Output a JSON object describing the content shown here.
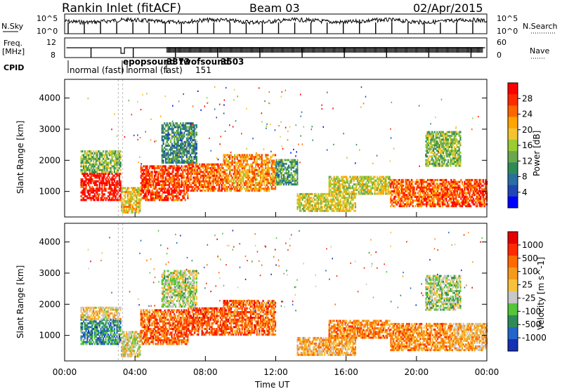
{
  "header": {
    "station": "Rankin Inlet (fitACF)",
    "beam": "Beam 03",
    "date": "02/Apr/2015"
  },
  "aux": {
    "nsky_label": "N.Sky",
    "nsky_ticks": [
      "10^5",
      "10^0"
    ],
    "nsearch_label": "N.Search",
    "nsearch_ticks": [
      "10^5",
      "10^0"
    ],
    "freq_label_1": "Freq.",
    "freq_label_2": "[MHz]",
    "freq_ticks": [
      "12",
      "8"
    ],
    "nave_label": "Nave",
    "nave_ticks": [
      "60",
      "0"
    ],
    "cpid_label": "CPID",
    "cpid_segments": [
      "normal (fast)",
      "epopsound",
      "normal (fast)",
      "3373",
      "twofsound",
      "3503",
      "151"
    ]
  },
  "chart_data": [
    {
      "type": "heatmap",
      "name": "Power panel",
      "ylabel": "Slant Range [km]",
      "yticks": [
        1000,
        2000,
        3000,
        4000
      ],
      "ylim": [
        180,
        4600
      ],
      "xlim": [
        0,
        24
      ],
      "colorbar": {
        "label": "Power [dB]",
        "ticks": [
          "28",
          "24",
          "20",
          "16",
          "12",
          "8",
          "4"
        ],
        "colors": [
          "#0000ff",
          "#2046b4",
          "#2a6fa0",
          "#2e8b57",
          "#6aa84f",
          "#9acd32",
          "#f4c430",
          "#ffa500",
          "#ff6600",
          "#ff2a00",
          "#ff0000"
        ]
      },
      "bands": [
        {
          "t": [
            0.9,
            3.2
          ],
          "r": [
            700,
            1600
          ],
          "v": 0.95
        },
        {
          "t": [
            0.9,
            3.2
          ],
          "r": [
            1600,
            2300
          ],
          "v": 0.45
        },
        {
          "t": [
            3.2,
            4.3
          ],
          "r": [
            300,
            1100
          ],
          "v": 0.6
        },
        {
          "t": [
            4.3,
            7.0
          ],
          "r": [
            700,
            1800
          ],
          "v": 0.85
        },
        {
          "t": [
            7.0,
            9.0
          ],
          "r": [
            1000,
            1900
          ],
          "v": 0.8
        },
        {
          "t": [
            9.0,
            12.0
          ],
          "r": [
            1000,
            2200
          ],
          "v": 0.7
        },
        {
          "t": [
            5.5,
            7.5
          ],
          "r": [
            1900,
            3200
          ],
          "v": 0.3
        },
        {
          "t": [
            12.0,
            13.2
          ],
          "r": [
            1200,
            2000
          ],
          "v": 0.35
        },
        {
          "t": [
            13.2,
            16.5
          ],
          "r": [
            350,
            900
          ],
          "v": 0.55
        },
        {
          "t": [
            15.0,
            18.5
          ],
          "r": [
            900,
            1500
          ],
          "v": 0.55
        },
        {
          "t": [
            18.5,
            22.0
          ],
          "r": [
            500,
            1400
          ],
          "v": 0.8
        },
        {
          "t": [
            22.0,
            24.0
          ],
          "r": [
            500,
            1400
          ],
          "v": 0.85
        },
        {
          "t": [
            20.5,
            22.5
          ],
          "r": [
            1800,
            2900
          ],
          "v": 0.45
        }
      ]
    },
    {
      "type": "heatmap",
      "name": "Velocity panel",
      "ylabel": "Slant Range [km]",
      "xlabel": "Time UT",
      "xticks": [
        "00:00",
        "04:00",
        "08:00",
        "12:00",
        "16:00",
        "20:00",
        "00:00"
      ],
      "yticks": [
        1000,
        2000,
        3000,
        4000
      ],
      "ylim": [
        180,
        4600
      ],
      "xlim": [
        0,
        24
      ],
      "colorbar": {
        "label": "Velocity [m s^-1]",
        "ticks": [
          "1000",
          "500",
          "100",
          "25",
          "-25",
          "-100",
          "-500",
          "-1000"
        ],
        "colors": [
          "#1530b4",
          "#2266cc",
          "#2e8b57",
          "#55c53a",
          "#c8c8c8",
          "#f6c23c",
          "#f59a1a",
          "#ff6a00",
          "#ff2a00",
          "#e60000"
        ]
      },
      "bands": [
        {
          "t": [
            0.9,
            3.2
          ],
          "r": [
            700,
            1500
          ],
          "v": 0.25
        },
        {
          "t": [
            0.9,
            3.2
          ],
          "r": [
            1500,
            1900
          ],
          "v": 0.55
        },
        {
          "t": [
            3.2,
            4.3
          ],
          "r": [
            300,
            1100
          ],
          "v": 0.5
        },
        {
          "t": [
            4.3,
            7.0
          ],
          "r": [
            700,
            1800
          ],
          "v": 0.75
        },
        {
          "t": [
            7.0,
            9.0
          ],
          "r": [
            1000,
            1900
          ],
          "v": 0.8
        },
        {
          "t": [
            9.0,
            12.0
          ],
          "r": [
            1000,
            2100
          ],
          "v": 0.75
        },
        {
          "t": [
            5.5,
            7.5
          ],
          "r": [
            1900,
            3100
          ],
          "v": 0.45
        },
        {
          "t": [
            13.2,
            16.5
          ],
          "r": [
            350,
            900
          ],
          "v": 0.62
        },
        {
          "t": [
            15.0,
            18.5
          ],
          "r": [
            900,
            1500
          ],
          "v": 0.7
        },
        {
          "t": [
            18.5,
            22.0
          ],
          "r": [
            500,
            1400
          ],
          "v": 0.68
        },
        {
          "t": [
            22.0,
            24.0
          ],
          "r": [
            500,
            1400
          ],
          "v": 0.6
        },
        {
          "t": [
            20.5,
            22.5
          ],
          "r": [
            1800,
            2900
          ],
          "v": 0.42
        }
      ]
    }
  ]
}
